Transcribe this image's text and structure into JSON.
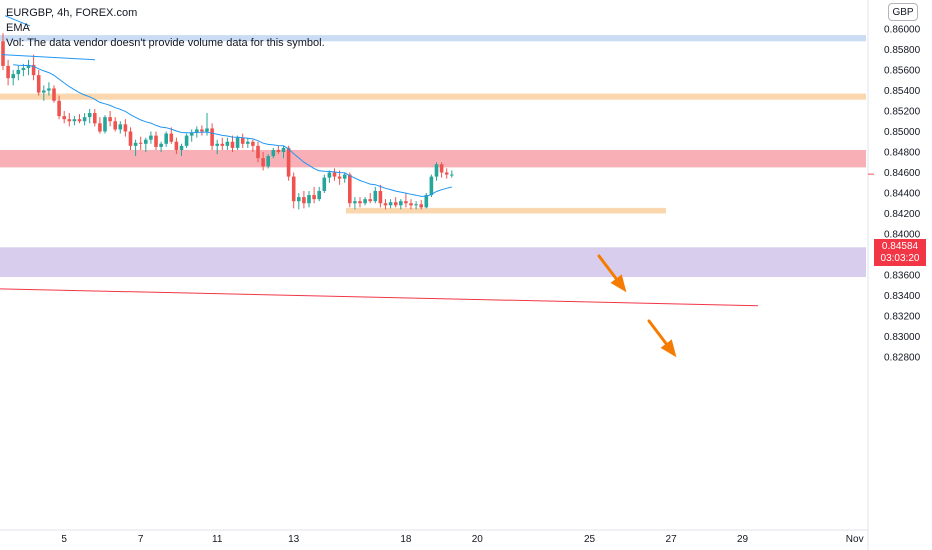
{
  "legend": {
    "symbol": "EURGBP, 4h, FOREX.com",
    "ema_label": "EMA",
    "vol_note": "Vol: The data vendor doesn't provide volume data for this symbol."
  },
  "price_axis": {
    "currency": "GBP",
    "last_price": "0.84584",
    "countdown": "03:03:20"
  },
  "colors": {
    "up": "#26a69a",
    "down": "#ef5350",
    "ema": "#2196f3",
    "trendline": "#f23645",
    "zone_red": "#f7a1a8",
    "zone_orange": "#fbd7b0",
    "zone_purple": "#d8cdec",
    "zone_blue": "#c9dcf3",
    "arrow": "#f57c00"
  },
  "chart_data": {
    "type": "candlestick",
    "title": "EURGBP, 4h, FOREX.com",
    "ylim": [
      0.8273,
      0.8612
    ],
    "price_ticks": [
      "0.86000",
      "0.85800",
      "0.85600",
      "0.85400",
      "0.85200",
      "0.85000",
      "0.84800",
      "0.84600",
      "0.84400",
      "0.84200",
      "0.84000",
      "0.83800",
      "0.83600",
      "0.83400",
      "0.83200",
      "0.83000",
      "0.82800"
    ],
    "x_ticks": [
      {
        "label": "5",
        "i": 12
      },
      {
        "label": "7",
        "i": 27
      },
      {
        "label": "11",
        "i": 42
      },
      {
        "label": "13",
        "i": 57
      },
      {
        "label": "18",
        "i": 79
      },
      {
        "label": "20",
        "i": 93
      },
      {
        "label": "25",
        "i": 115
      },
      {
        "label": "27",
        "i": 131
      },
      {
        "label": "29",
        "i": 145
      },
      {
        "label": "Nov",
        "i": 167
      }
    ],
    "last_price": 0.84584,
    "candles": [
      [
        0.8588,
        0.8596,
        0.856,
        0.8564
      ],
      [
        0.8564,
        0.857,
        0.8545,
        0.8552
      ],
      [
        0.8552,
        0.856,
        0.8545,
        0.8556
      ],
      [
        0.8556,
        0.8564,
        0.855,
        0.856
      ],
      [
        0.856,
        0.8566,
        0.8554,
        0.8562
      ],
      [
        0.8562,
        0.857,
        0.8555,
        0.8565
      ],
      [
        0.8565,
        0.8575,
        0.855,
        0.8555
      ],
      [
        0.8555,
        0.856,
        0.8535,
        0.8538
      ],
      [
        0.8538,
        0.8545,
        0.853,
        0.854
      ],
      [
        0.854,
        0.8548,
        0.8535,
        0.8542
      ],
      [
        0.8542,
        0.8545,
        0.8528,
        0.853
      ],
      [
        0.853,
        0.8535,
        0.8512,
        0.8515
      ],
      [
        0.8515,
        0.852,
        0.8508,
        0.8512
      ],
      [
        0.8512,
        0.8518,
        0.8505,
        0.851
      ],
      [
        0.851,
        0.8515,
        0.8506,
        0.8512
      ],
      [
        0.8512,
        0.8517,
        0.8508,
        0.851
      ],
      [
        0.851,
        0.8518,
        0.8506,
        0.8514
      ],
      [
        0.8514,
        0.8522,
        0.8508,
        0.8518
      ],
      [
        0.8518,
        0.8522,
        0.8505,
        0.8508
      ],
      [
        0.8508,
        0.8514,
        0.8498,
        0.85
      ],
      [
        0.85,
        0.8516,
        0.8498,
        0.8514
      ],
      [
        0.8514,
        0.852,
        0.8505,
        0.851
      ],
      [
        0.851,
        0.8514,
        0.85,
        0.8502
      ],
      [
        0.8502,
        0.851,
        0.8498,
        0.8507
      ],
      [
        0.8507,
        0.8512,
        0.8495,
        0.85
      ],
      [
        0.85,
        0.8504,
        0.8482,
        0.8486
      ],
      [
        0.8486,
        0.8492,
        0.8476,
        0.8489
      ],
      [
        0.8489,
        0.8495,
        0.8482,
        0.8488
      ],
      [
        0.8488,
        0.8494,
        0.848,
        0.8492
      ],
      [
        0.8492,
        0.85,
        0.8488,
        0.8496
      ],
      [
        0.8496,
        0.85,
        0.8482,
        0.8485
      ],
      [
        0.8485,
        0.849,
        0.848,
        0.8488
      ],
      [
        0.8488,
        0.85,
        0.8485,
        0.8498
      ],
      [
        0.8498,
        0.8504,
        0.8488,
        0.849
      ],
      [
        0.849,
        0.8494,
        0.8478,
        0.8482
      ],
      [
        0.8482,
        0.8488,
        0.8476,
        0.8486
      ],
      [
        0.8486,
        0.8498,
        0.8484,
        0.8496
      ],
      [
        0.8496,
        0.8502,
        0.849,
        0.8499
      ],
      [
        0.8499,
        0.8505,
        0.8494,
        0.8502
      ],
      [
        0.8502,
        0.8506,
        0.8496,
        0.85
      ],
      [
        0.85,
        0.8518,
        0.8496,
        0.8503
      ],
      [
        0.8503,
        0.8508,
        0.8482,
        0.8486
      ],
      [
        0.8486,
        0.8492,
        0.8478,
        0.8488
      ],
      [
        0.8488,
        0.8494,
        0.8482,
        0.8486
      ],
      [
        0.8486,
        0.8494,
        0.8482,
        0.849
      ],
      [
        0.849,
        0.8496,
        0.848,
        0.8484
      ],
      [
        0.8484,
        0.8496,
        0.8482,
        0.8494
      ],
      [
        0.8494,
        0.8498,
        0.8484,
        0.8488
      ],
      [
        0.8488,
        0.8494,
        0.8484,
        0.849
      ],
      [
        0.849,
        0.8492,
        0.848,
        0.8486
      ],
      [
        0.8486,
        0.849,
        0.847,
        0.8474
      ],
      [
        0.8474,
        0.848,
        0.8462,
        0.8466
      ],
      [
        0.8466,
        0.8478,
        0.8464,
        0.8476
      ],
      [
        0.8476,
        0.8484,
        0.8474,
        0.8482
      ],
      [
        0.8482,
        0.8486,
        0.8478,
        0.848
      ],
      [
        0.848,
        0.8486,
        0.8474,
        0.8484
      ],
      [
        0.8484,
        0.8486,
        0.8452,
        0.8456
      ],
      [
        0.8456,
        0.846,
        0.8425,
        0.8432
      ],
      [
        0.8432,
        0.844,
        0.8424,
        0.8436
      ],
      [
        0.8436,
        0.8442,
        0.8425,
        0.843
      ],
      [
        0.843,
        0.8442,
        0.8426,
        0.8438
      ],
      [
        0.8438,
        0.8446,
        0.843,
        0.8434
      ],
      [
        0.8434,
        0.8446,
        0.8432,
        0.8442
      ],
      [
        0.8442,
        0.8458,
        0.844,
        0.8455
      ],
      [
        0.8455,
        0.8462,
        0.845,
        0.846
      ],
      [
        0.846,
        0.8464,
        0.8452,
        0.8456
      ],
      [
        0.8456,
        0.8462,
        0.8448,
        0.8454
      ],
      [
        0.8454,
        0.846,
        0.845,
        0.8458
      ],
      [
        0.8458,
        0.846,
        0.8426,
        0.843
      ],
      [
        0.843,
        0.8436,
        0.8424,
        0.8432
      ],
      [
        0.8432,
        0.8436,
        0.8426,
        0.843
      ],
      [
        0.843,
        0.8436,
        0.8428,
        0.8434
      ],
      [
        0.8434,
        0.844,
        0.843,
        0.8432
      ],
      [
        0.8432,
        0.8446,
        0.843,
        0.8442
      ],
      [
        0.8442,
        0.8448,
        0.8426,
        0.843
      ],
      [
        0.843,
        0.8434,
        0.8424,
        0.8428
      ],
      [
        0.8428,
        0.8434,
        0.8425,
        0.8431
      ],
      [
        0.8431,
        0.8436,
        0.8426,
        0.8428
      ],
      [
        0.8428,
        0.8434,
        0.8424,
        0.8432
      ],
      [
        0.8432,
        0.844,
        0.8426,
        0.843
      ],
      [
        0.843,
        0.8434,
        0.8424,
        0.8428
      ],
      [
        0.8428,
        0.8432,
        0.8424,
        0.8429
      ],
      [
        0.8429,
        0.8433,
        0.8424,
        0.8426
      ],
      [
        0.8426,
        0.844,
        0.8425,
        0.8438
      ],
      [
        0.8438,
        0.8458,
        0.8436,
        0.8456
      ],
      [
        0.8456,
        0.847,
        0.8452,
        0.8468
      ],
      [
        0.8468,
        0.847,
        0.8455,
        0.846
      ],
      [
        0.846,
        0.8464,
        0.8454,
        0.8458
      ],
      [
        0.8458,
        0.8462,
        0.8455,
        0.8458
      ]
    ]
  }
}
